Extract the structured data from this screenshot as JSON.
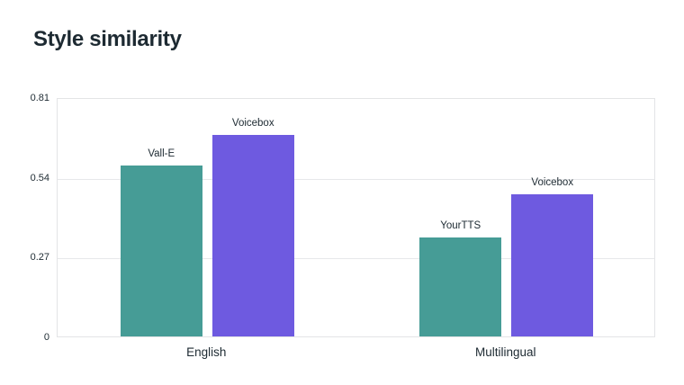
{
  "chart_data": {
    "type": "bar",
    "title": "Style similarity",
    "xlabel": "",
    "ylabel": "",
    "ylim": [
      0,
      0.81
    ],
    "ytick_values": [
      0,
      0.27,
      0.54,
      0.81
    ],
    "ytick_labels": [
      "0",
      "0.27",
      "0.54",
      "0.81"
    ],
    "grid": "horizontal",
    "legend_position": "none",
    "categories": [
      "English",
      "Multilingual"
    ],
    "groups": [
      {
        "category": "English",
        "bars": [
          {
            "label": "Vall-E",
            "value": 0.58,
            "color": "teal"
          },
          {
            "label": "Voicebox",
            "value": 0.681,
            "color": "purple"
          }
        ]
      },
      {
        "category": "Multilingual",
        "bars": [
          {
            "label": "YourTTS",
            "value": 0.335,
            "color": "teal"
          },
          {
            "label": "Voicebox",
            "value": 0.481,
            "color": "purple"
          }
        ]
      }
    ],
    "colors": {
      "teal": "#469c96",
      "purple": "#6e5ae0",
      "text": "#1d2a32",
      "grid": "#e7e8ea",
      "background": "#ffffff"
    }
  }
}
